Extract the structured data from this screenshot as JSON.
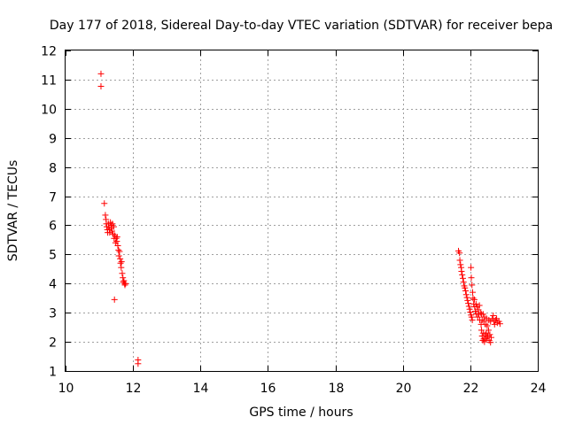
{
  "chart_data": {
    "type": "scatter",
    "title": "Day 177 of 2018, Sidereal Day-to-day VTEC variation (SDTVAR) for receiver bepa",
    "xlabel": "GPS time / hours",
    "ylabel": "SDTVAR / TECUs",
    "xlim": [
      10,
      24
    ],
    "ylim": [
      1,
      12
    ],
    "xticks": [
      10,
      12,
      14,
      16,
      18,
      20,
      22,
      24
    ],
    "yticks": [
      1,
      2,
      3,
      4,
      5,
      6,
      7,
      8,
      9,
      10,
      11,
      12
    ],
    "grid": true,
    "marker": "+",
    "color": "#ff0000",
    "series": [
      {
        "name": "SDTVAR",
        "points": [
          [
            11.05,
            11.2
          ],
          [
            11.05,
            10.77
          ],
          [
            11.15,
            6.75
          ],
          [
            11.18,
            6.35
          ],
          [
            11.2,
            6.2
          ],
          [
            11.21,
            6.05
          ],
          [
            11.22,
            5.95
          ],
          [
            11.24,
            5.85
          ],
          [
            11.25,
            5.75
          ],
          [
            11.27,
            6.05
          ],
          [
            11.28,
            5.95
          ],
          [
            11.3,
            5.85
          ],
          [
            11.31,
            5.75
          ],
          [
            11.33,
            6.1
          ],
          [
            11.35,
            5.9
          ],
          [
            11.36,
            6.0
          ],
          [
            11.38,
            5.8
          ],
          [
            11.39,
            6.05
          ],
          [
            11.41,
            5.7
          ],
          [
            11.43,
            5.95
          ],
          [
            11.44,
            5.55
          ],
          [
            11.46,
            5.65
          ],
          [
            11.48,
            5.4
          ],
          [
            11.5,
            5.55
          ],
          [
            11.52,
            5.45
          ],
          [
            11.53,
            5.6
          ],
          [
            11.55,
            5.3
          ],
          [
            11.57,
            5.15
          ],
          [
            11.58,
            4.95
          ],
          [
            11.6,
            5.1
          ],
          [
            11.62,
            4.85
          ],
          [
            11.63,
            4.7
          ],
          [
            11.65,
            4.55
          ],
          [
            11.66,
            4.75
          ],
          [
            11.68,
            4.35
          ],
          [
            11.7,
            4.2
          ],
          [
            11.71,
            4.05
          ],
          [
            11.73,
            4.1
          ],
          [
            11.75,
            4.0
          ],
          [
            11.76,
            3.95
          ],
          [
            11.78,
            4.0
          ],
          [
            11.45,
            3.45
          ],
          [
            12.15,
            1.38
          ],
          [
            12.15,
            1.25
          ],
          [
            21.65,
            5.12
          ],
          [
            21.68,
            5.05
          ],
          [
            21.69,
            4.8
          ],
          [
            21.71,
            4.65
          ],
          [
            21.73,
            4.55
          ],
          [
            21.74,
            4.42
          ],
          [
            21.76,
            4.3
          ],
          [
            21.78,
            4.18
          ],
          [
            21.8,
            4.05
          ],
          [
            21.82,
            3.92
          ],
          [
            21.84,
            3.85
          ],
          [
            21.86,
            3.75
          ],
          [
            21.88,
            3.62
          ],
          [
            21.9,
            3.52
          ],
          [
            21.92,
            3.42
          ],
          [
            21.94,
            3.32
          ],
          [
            21.96,
            3.22
          ],
          [
            21.98,
            3.12
          ],
          [
            22.0,
            3.02
          ],
          [
            22.02,
            2.92
          ],
          [
            22.04,
            2.85
          ],
          [
            22.06,
            2.75
          ],
          [
            22.02,
            4.55
          ],
          [
            22.03,
            4.2
          ],
          [
            22.05,
            3.95
          ],
          [
            22.07,
            3.7
          ],
          [
            22.08,
            3.5
          ],
          [
            22.1,
            3.3
          ],
          [
            22.12,
            3.45
          ],
          [
            22.13,
            3.2
          ],
          [
            22.15,
            3.05
          ],
          [
            22.17,
            3.3
          ],
          [
            22.18,
            2.95
          ],
          [
            22.2,
            3.2
          ],
          [
            22.22,
            2.85
          ],
          [
            22.24,
            3.1
          ],
          [
            22.25,
            2.95
          ],
          [
            22.27,
            3.25
          ],
          [
            22.28,
            2.75
          ],
          [
            22.3,
            3.0
          ],
          [
            22.32,
            2.6
          ],
          [
            22.33,
            2.4
          ],
          [
            22.35,
            2.2
          ],
          [
            22.37,
            2.05
          ],
          [
            22.38,
            2.3
          ],
          [
            22.4,
            2.1
          ],
          [
            22.42,
            2.0
          ],
          [
            22.44,
            2.25
          ],
          [
            22.46,
            2.1
          ],
          [
            22.48,
            2.3
          ],
          [
            22.5,
            2.15
          ],
          [
            22.52,
            2.2
          ],
          [
            22.54,
            2.4
          ],
          [
            22.56,
            2.05
          ],
          [
            22.58,
            2.25
          ],
          [
            22.6,
            1.98
          ],
          [
            22.62,
            2.15
          ],
          [
            22.33,
            2.95
          ],
          [
            22.35,
            2.75
          ],
          [
            22.38,
            2.95
          ],
          [
            22.4,
            2.7
          ],
          [
            22.42,
            2.85
          ],
          [
            22.45,
            2.6
          ],
          [
            22.48,
            2.8
          ],
          [
            22.5,
            2.55
          ],
          [
            22.55,
            2.75
          ],
          [
            22.6,
            2.7
          ],
          [
            22.65,
            2.8
          ],
          [
            22.7,
            2.7
          ],
          [
            22.75,
            2.75
          ],
          [
            22.8,
            2.65
          ],
          [
            22.85,
            2.7
          ],
          [
            22.88,
            2.62
          ],
          [
            22.68,
            2.9
          ],
          [
            22.72,
            2.6
          ],
          [
            22.78,
            2.8
          ]
        ]
      }
    ]
  }
}
